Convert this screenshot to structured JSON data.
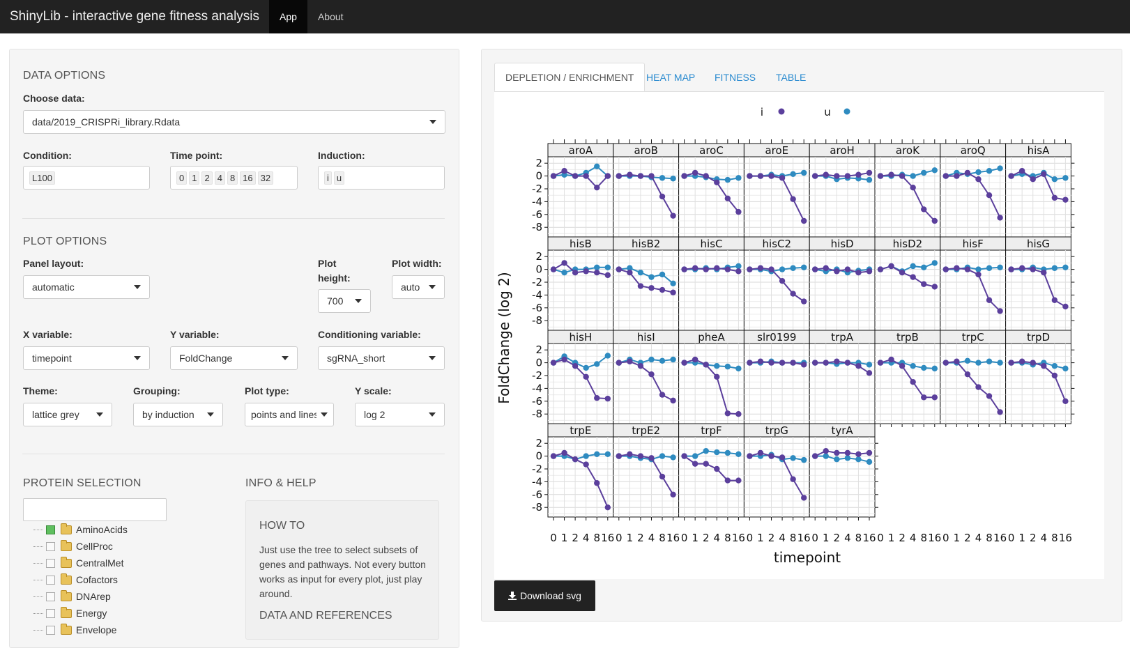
{
  "navbar": {
    "title": "ShinyLib - interactive gene fitness analysis",
    "tabs": [
      {
        "label": "App"
      },
      {
        "label": "About"
      }
    ]
  },
  "data_options": {
    "heading": "DATA OPTIONS",
    "choose_label": "Choose data:",
    "choose_value": "data/2019_CRISPRi_library.Rdata",
    "condition_label": "Condition:",
    "condition_value": "L100",
    "timepoint_label": "Time point:",
    "timepoint_values": [
      "0",
      "1",
      "2",
      "4",
      "8",
      "16",
      "32"
    ],
    "induction_label": "Induction:",
    "induction_values": [
      "i",
      "u"
    ]
  },
  "plot_options": {
    "heading": "PLOT OPTIONS",
    "panel_layout_label": "Panel layout:",
    "panel_layout_value": "automatic",
    "plot_height_label_1": "Plot",
    "plot_height_label_2": "height:",
    "plot_height_value": "700",
    "plot_width_label": "Plot width:",
    "plot_width_value": "auto",
    "x_var_label": "X variable:",
    "x_var_value": "timepoint",
    "y_var_label": "Y variable:",
    "y_var_value": "FoldChange",
    "cond_var_label": "Conditioning variable:",
    "cond_var_value": "sgRNA_short",
    "theme_label": "Theme:",
    "theme_value": "lattice grey",
    "grouping_label": "Grouping:",
    "grouping_value": "by induction",
    "plot_type_label": "Plot type:",
    "plot_type_value": "points and lines",
    "y_scale_label": "Y scale:",
    "y_scale_value": "log 2"
  },
  "protein_selection": {
    "heading": "PROTEIN SELECTION",
    "search_value": "",
    "tree": [
      {
        "label": "AminoAcids",
        "checked": true
      },
      {
        "label": "CellProc",
        "checked": false
      },
      {
        "label": "CentralMet",
        "checked": false
      },
      {
        "label": "Cofactors",
        "checked": false
      },
      {
        "label": "DNArep",
        "checked": false
      },
      {
        "label": "Energy",
        "checked": false
      },
      {
        "label": "Envelope",
        "checked": false
      }
    ]
  },
  "info_help": {
    "heading": "INFO & HELP",
    "howto_heading": "HOW TO",
    "howto_lines": [
      "Just use the tree to select subsets of",
      "genes and pathways. Not every button",
      "works as input for every plot, just play",
      "around."
    ],
    "refs_heading": "DATA AND REFERENCES"
  },
  "main_tabs": [
    {
      "label": "DEPLETION / ENRICHMENT",
      "active": true
    },
    {
      "label": "HEAT MAP",
      "active": false
    },
    {
      "label": "FITNESS",
      "active": false
    },
    {
      "label": "TABLE",
      "active": false
    }
  ],
  "download_label": "Download svg",
  "colors": {
    "i": "#5b3f9c",
    "u": "#2e8bc0",
    "navbar": "#222222",
    "strip": "#eeeeee"
  },
  "chart_data": {
    "type": "line",
    "xlabel": "timepoint",
    "ylabel": "FoldChange (log 2)",
    "x_ticks": [
      "0",
      "1",
      "2",
      "4",
      "8",
      "16"
    ],
    "y_ticks": [
      2,
      0,
      -2,
      -4,
      -6,
      -8
    ],
    "ylim": [
      -9.5,
      3
    ],
    "legend": [
      {
        "name": "i",
        "color": "#5b3f9c"
      },
      {
        "name": "u",
        "color": "#2e8bc0"
      }
    ],
    "legend_position": "top",
    "panels": [
      {
        "gene": "aroA",
        "i": [
          0,
          0.8,
          0,
          0,
          -1.8,
          0
        ],
        "u": [
          0,
          0.2,
          0,
          0.5,
          1.5,
          0
        ]
      },
      {
        "gene": "aroB",
        "i": [
          0,
          0.2,
          0,
          0,
          -3.2,
          -6.2
        ],
        "u": [
          0,
          0,
          0,
          -0.2,
          -0.3,
          -0.4
        ]
      },
      {
        "gene": "aroC",
        "i": [
          0,
          0.5,
          0,
          -1,
          -3.5,
          -5.6
        ],
        "u": [
          0,
          0,
          -0.2,
          -0.5,
          -0.6,
          -0.3
        ]
      },
      {
        "gene": "aroE",
        "i": [
          0,
          0,
          0,
          -0.3,
          -3.6,
          -7
        ],
        "u": [
          0,
          0,
          0.2,
          0,
          0.3,
          0.5
        ]
      },
      {
        "gene": "aroH",
        "i": [
          0,
          0.2,
          0,
          0,
          0.2,
          0.5
        ],
        "u": [
          0,
          0,
          -0.5,
          -0.3,
          -0.4,
          -0.6
        ]
      },
      {
        "gene": "aroK",
        "i": [
          0,
          0.2,
          0,
          -1.8,
          -5.2,
          -7
        ],
        "u": [
          0,
          0,
          0.2,
          0,
          0.5,
          0.9
        ]
      },
      {
        "gene": "aroQ",
        "i": [
          0,
          0,
          0.5,
          -0.5,
          -3,
          -6.5
        ],
        "u": [
          0,
          0.5,
          0.3,
          0.6,
          0.8,
          1.2
        ]
      },
      {
        "gene": "hisA",
        "i": [
          0,
          0.8,
          -0.5,
          0.3,
          -3.4,
          -3.7
        ],
        "u": [
          0,
          0.3,
          0,
          0.5,
          -0.5,
          -0.3
        ]
      },
      {
        "gene": "hisB",
        "i": [
          0,
          1,
          -0.5,
          -0.3,
          -0.5,
          -0.9
        ],
        "u": [
          0,
          -0.5,
          0,
          0,
          0.3,
          0.3
        ]
      },
      {
        "gene": "hisB2",
        "i": [
          0,
          -0.5,
          -2.6,
          -2.9,
          -3.2,
          -3.6
        ],
        "u": [
          0,
          0.2,
          -0.5,
          -1.2,
          -0.8,
          -2.2
        ]
      },
      {
        "gene": "hisC",
        "i": [
          0,
          0.2,
          0,
          0.2,
          0,
          -0.3
        ],
        "u": [
          0,
          0,
          0.2,
          0,
          0.3,
          0.5
        ]
      },
      {
        "gene": "hisC2",
        "i": [
          0,
          0.2,
          0,
          -1.8,
          -3.8,
          -5
        ],
        "u": [
          0,
          0,
          -0.3,
          0,
          0.2,
          0.3
        ]
      },
      {
        "gene": "hisD",
        "i": [
          0,
          0.2,
          -0.3,
          0,
          -0.5,
          -0.3
        ],
        "u": [
          0,
          -0.3,
          0,
          -0.5,
          -0.2,
          0
        ]
      },
      {
        "gene": "hisD2",
        "i": [
          0,
          0.5,
          -0.5,
          -1.2,
          -2.3,
          -2.7
        ],
        "u": [
          0,
          0.5,
          -0.3,
          0.5,
          0.3,
          1
        ]
      },
      {
        "gene": "hisF",
        "i": [
          0,
          0.2,
          0,
          -0.8,
          -4.8,
          -6.5
        ],
        "u": [
          0,
          0,
          0.3,
          0,
          0.2,
          0.3
        ]
      },
      {
        "gene": "hisG",
        "i": [
          0,
          0.2,
          0,
          -0.5,
          -4.8,
          -5.8
        ],
        "u": [
          0,
          0,
          0.3,
          0,
          0.2,
          0.3
        ]
      },
      {
        "gene": "hisH",
        "i": [
          0,
          0.5,
          -0.5,
          -2.2,
          -5.5,
          -5.6
        ],
        "u": [
          0,
          1,
          0,
          -0.8,
          -0.2,
          1.1
        ]
      },
      {
        "gene": "hisI",
        "i": [
          0,
          0.2,
          -0.5,
          -1.8,
          -5,
          -5.9
        ],
        "u": [
          0,
          0.5,
          0,
          0.5,
          0.3,
          0.5
        ]
      },
      {
        "gene": "pheA",
        "i": [
          0,
          0.5,
          -0.3,
          -2.2,
          -7.9,
          -8
        ],
        "u": [
          0,
          0,
          -0.3,
          -0.5,
          -0.6,
          -0.9
        ]
      },
      {
        "gene": "slr0199",
        "i": [
          0,
          0.2,
          0,
          0,
          0,
          -0.3
        ],
        "u": [
          0,
          0,
          0.2,
          0,
          0,
          0
        ]
      },
      {
        "gene": "trpA",
        "i": [
          0,
          0,
          0.2,
          0,
          -0.5,
          -1.6
        ],
        "u": [
          0,
          0,
          -0.2,
          0,
          0,
          -0.3
        ]
      },
      {
        "gene": "trpB",
        "i": [
          0,
          0.5,
          -0.5,
          -3,
          -5.4,
          -5.4
        ],
        "u": [
          0,
          0,
          0,
          -0.5,
          -0.8,
          -0.9
        ]
      },
      {
        "gene": "trpC",
        "i": [
          0,
          0.2,
          -1.8,
          -3.8,
          -5.2,
          -7.7
        ],
        "u": [
          0,
          0,
          0.3,
          0,
          0.2,
          0
        ]
      },
      {
        "gene": "trpD",
        "i": [
          0,
          0.2,
          0,
          -0.5,
          -2,
          -6
        ],
        "u": [
          0,
          0,
          -0.3,
          0,
          -0.5,
          -0.9
        ]
      },
      {
        "gene": "trpE",
        "i": [
          0,
          0.5,
          -0.5,
          -1.3,
          -4.2,
          -8
        ],
        "u": [
          0,
          0,
          -0.5,
          0,
          0.3,
          0.3
        ]
      },
      {
        "gene": "trpE2",
        "i": [
          0,
          0.3,
          0,
          -0.3,
          -3.2,
          -6
        ],
        "u": [
          0,
          0,
          -0.3,
          -0.5,
          0,
          -0.2
        ]
      },
      {
        "gene": "trpF",
        "i": [
          0,
          -1.2,
          -1.2,
          -2,
          -3.8,
          -3.8
        ],
        "u": [
          0,
          0,
          0.8,
          0.6,
          0.5,
          0.3
        ]
      },
      {
        "gene": "trpG",
        "i": [
          0,
          0.5,
          0,
          -0.2,
          -3.6,
          -6.5
        ],
        "u": [
          0,
          0,
          0.2,
          -0.5,
          -0.3,
          -0.6
        ]
      },
      {
        "gene": "tyrA",
        "i": [
          0,
          0.8,
          0.5,
          0.5,
          0.3,
          0.5
        ],
        "u": [
          0,
          0,
          -0.5,
          -0.3,
          -0.5,
          -0.9
        ]
      }
    ]
  }
}
